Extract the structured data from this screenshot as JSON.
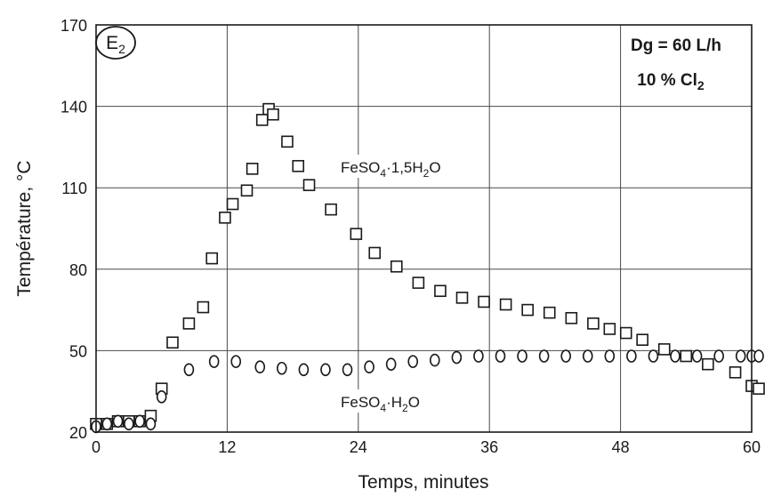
{
  "chart_data": {
    "type": "scatter",
    "xlabel": "Temps, minutes",
    "ylabel": "Température, °C",
    "xlim": [
      0,
      60
    ],
    "ylim": [
      20,
      170
    ],
    "xticks": [
      0,
      12,
      24,
      36,
      48,
      60
    ],
    "yticks": [
      20,
      50,
      80,
      110,
      140,
      170
    ],
    "grid": true,
    "panel_label": {
      "main": "E",
      "sub": "2"
    },
    "conditions": {
      "line1": "Dg = 60 L/h",
      "line2_main": "10 % Cl",
      "line2_sub": "2"
    },
    "series": [
      {
        "name": "FeSO4·1,5H2O",
        "label_parts": [
          "FeSO",
          "4",
          "·1,5H",
          "2",
          "O"
        ],
        "marker": "square",
        "points": [
          [
            0,
            23
          ],
          [
            1,
            23
          ],
          [
            2,
            24
          ],
          [
            3,
            24
          ],
          [
            4,
            24
          ],
          [
            5,
            26
          ],
          [
            6,
            36
          ],
          [
            7,
            53
          ],
          [
            8.5,
            60
          ],
          [
            9.8,
            66
          ],
          [
            10.6,
            84
          ],
          [
            11.8,
            99
          ],
          [
            12.5,
            104
          ],
          [
            13.8,
            109
          ],
          [
            14.3,
            117
          ],
          [
            15.2,
            135
          ],
          [
            15.8,
            139
          ],
          [
            16.2,
            137
          ],
          [
            17.5,
            127
          ],
          [
            18.5,
            118
          ],
          [
            19.5,
            111
          ],
          [
            21.5,
            102
          ],
          [
            23.8,
            93
          ],
          [
            25.5,
            86
          ],
          [
            27.5,
            81
          ],
          [
            29.5,
            75
          ],
          [
            31.5,
            72
          ],
          [
            33.5,
            69.5
          ],
          [
            35.5,
            68
          ],
          [
            37.5,
            67
          ],
          [
            39.5,
            65
          ],
          [
            41.5,
            64
          ],
          [
            43.5,
            62
          ],
          [
            45.5,
            60
          ],
          [
            47,
            58
          ],
          [
            48.5,
            56.5
          ],
          [
            50,
            54
          ],
          [
            52,
            50.5
          ],
          [
            54,
            48
          ],
          [
            56,
            45
          ],
          [
            58.5,
            42
          ],
          [
            60,
            37
          ],
          [
            61,
            36
          ]
        ]
      },
      {
        "name": "FeSO4·H2O",
        "label_parts": [
          "FeSO",
          "4",
          "·H",
          "2",
          "O"
        ],
        "marker": "circle",
        "points": [
          [
            0,
            22
          ],
          [
            1,
            23
          ],
          [
            2,
            24
          ],
          [
            3,
            23
          ],
          [
            4,
            24
          ],
          [
            5,
            23
          ],
          [
            6,
            33
          ],
          [
            8.5,
            43
          ],
          [
            10.8,
            46
          ],
          [
            12.8,
            46
          ],
          [
            15,
            44
          ],
          [
            17,
            43.5
          ],
          [
            19,
            43
          ],
          [
            21,
            43
          ],
          [
            23,
            43
          ],
          [
            25,
            44
          ],
          [
            27,
            45
          ],
          [
            29,
            46
          ],
          [
            31,
            46.5
          ],
          [
            33,
            47.5
          ],
          [
            35,
            48
          ],
          [
            37,
            48
          ],
          [
            39,
            48
          ],
          [
            41,
            48
          ],
          [
            43,
            48
          ],
          [
            45,
            48
          ],
          [
            47,
            48
          ],
          [
            49,
            48
          ],
          [
            51,
            48
          ],
          [
            53,
            48
          ],
          [
            55,
            48
          ],
          [
            57,
            48
          ],
          [
            59,
            48
          ],
          [
            60,
            48
          ],
          [
            61,
            48
          ]
        ]
      }
    ]
  }
}
